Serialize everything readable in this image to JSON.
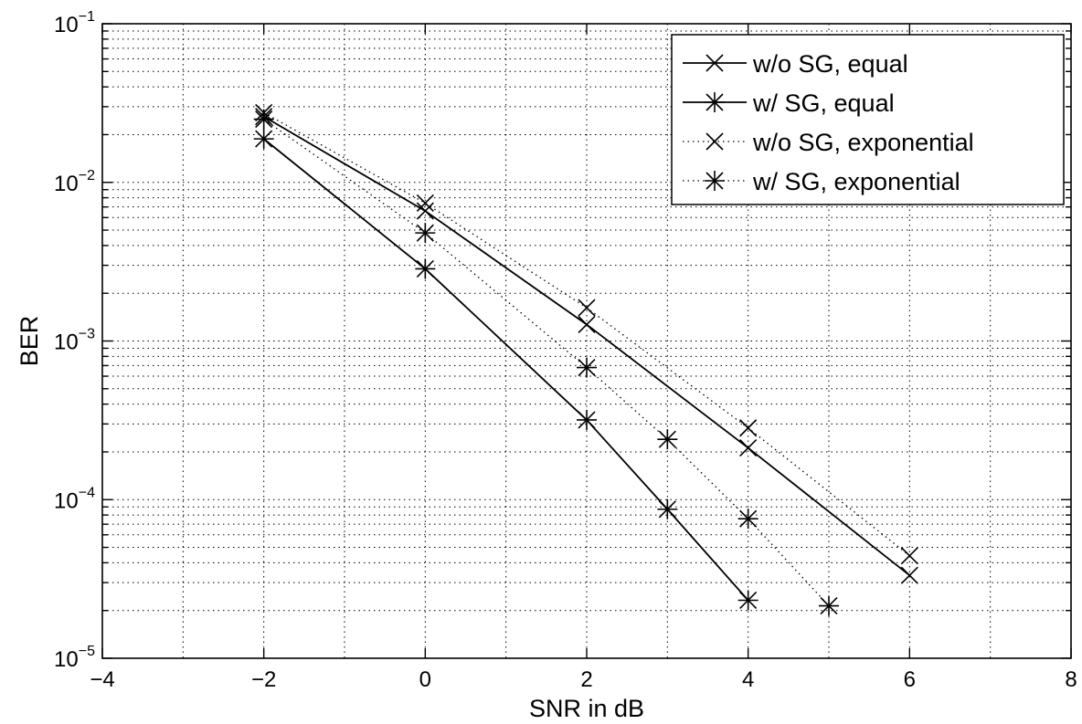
{
  "chart_data": {
    "type": "line",
    "title": "",
    "xlabel": "SNR in dB",
    "ylabel": "BER",
    "xscale": "linear",
    "yscale": "log",
    "xlim": [
      -4,
      8
    ],
    "ylim": [
      1e-05,
      0.1
    ],
    "xticks": [
      -4,
      -2,
      0,
      2,
      4,
      6,
      8
    ],
    "xtick_labels": [
      "−4",
      "−2",
      "0",
      "2",
      "4",
      "6",
      "8"
    ],
    "yticks": [
      {
        "base": "10",
        "exp": "−5",
        "value": 1e-05
      },
      {
        "base": "10",
        "exp": "−4",
        "value": 0.0001
      },
      {
        "base": "10",
        "exp": "−3",
        "value": 0.001
      },
      {
        "base": "10",
        "exp": "−2",
        "value": 0.01
      },
      {
        "base": "10",
        "exp": "−1",
        "value": 0.1
      }
    ],
    "grid": true,
    "grid_style": "dotted",
    "legend_position": "top-right",
    "color": "#000000",
    "series": [
      {
        "name": "w/o SG, equal",
        "marker": "x",
        "line": "solid",
        "x": [
          -2,
          0,
          2,
          4,
          6
        ],
        "y": [
          0.026,
          0.0066,
          0.00127,
          0.000212,
          3.33e-05
        ]
      },
      {
        "name": "w/ SG, equal",
        "marker": "asterisk",
        "line": "solid",
        "x": [
          -2,
          0,
          2,
          3,
          4
        ],
        "y": [
          0.0188,
          0.00285,
          0.000318,
          8.7e-05,
          2.32e-05
        ]
      },
      {
        "name": "w/o SG, exponential",
        "marker": "x",
        "line": "dotted",
        "x": [
          -2,
          0,
          2,
          4,
          6
        ],
        "y": [
          0.0275,
          0.0074,
          0.00162,
          0.000283,
          4.43e-05
        ]
      },
      {
        "name": "w/ SG, exponential",
        "marker": "asterisk",
        "line": "dotted",
        "x": [
          -2,
          0,
          2,
          3,
          4,
          5
        ],
        "y": [
          0.025,
          0.0048,
          0.00068,
          0.00024,
          7.58e-05,
          2.14e-05
        ]
      }
    ]
  }
}
